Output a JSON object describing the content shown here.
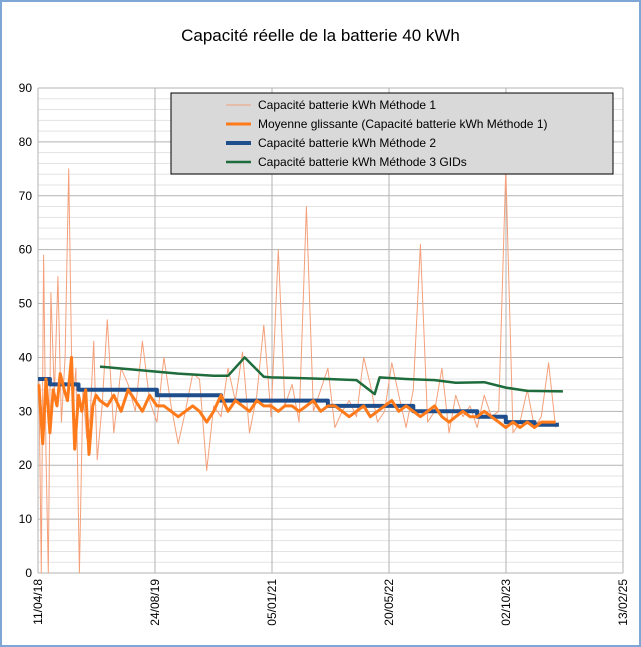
{
  "chart_data": {
    "type": "line",
    "title": "Capacité réelle de la batterie 40 kWh",
    "xlabel": "",
    "ylabel": "",
    "ylim": [
      0,
      90
    ],
    "y_ticks": [
      0,
      10,
      20,
      30,
      40,
      50,
      60,
      70,
      80,
      90
    ],
    "xlim": [
      "2018-04-11",
      "2025-02-13"
    ],
    "x_tick_labels": [
      "11/04/18",
      "24/08/19",
      "05/01/21",
      "20/05/22",
      "02/10/23",
      "13/02/25"
    ],
    "grid": true,
    "legend_position": "top-right",
    "series": [
      {
        "name": "Capacité batterie kWh Méthode 1",
        "color": "#f4a07a",
        "x": [
          "2018-04-15",
          "2018-04-25",
          "2018-05-05",
          "2018-05-15",
          "2018-05-25",
          "2018-06-05",
          "2018-06-20",
          "2018-07-05",
          "2018-07-20",
          "2018-08-05",
          "2018-08-20",
          "2018-09-05",
          "2018-09-20",
          "2018-10-05",
          "2018-10-20",
          "2018-11-05",
          "2018-11-20",
          "2018-12-05",
          "2018-12-20",
          "2019-01-10",
          "2019-02-01",
          "2019-03-01",
          "2019-04-01",
          "2019-05-01",
          "2019-06-01",
          "2019-07-01",
          "2019-08-01",
          "2019-09-01",
          "2019-10-01",
          "2019-11-01",
          "2019-12-01",
          "2020-01-01",
          "2020-02-01",
          "2020-03-01",
          "2020-04-01",
          "2020-05-01",
          "2020-06-01",
          "2020-07-01",
          "2020-08-01",
          "2020-09-01",
          "2020-10-01",
          "2020-11-01",
          "2020-12-01",
          "2021-01-01",
          "2021-02-01",
          "2021-03-01",
          "2021-04-01",
          "2021-05-01",
          "2021-06-01",
          "2021-07-01",
          "2021-08-01",
          "2021-09-01",
          "2021-10-01",
          "2021-11-01",
          "2021-12-01",
          "2022-01-01",
          "2022-02-01",
          "2022-03-01",
          "2022-04-01",
          "2022-05-01",
          "2022-06-01",
          "2022-07-01",
          "2022-08-01",
          "2022-09-01",
          "2022-10-01",
          "2022-11-01",
          "2022-12-01",
          "2023-01-01",
          "2023-02-01",
          "2023-03-01",
          "2023-04-01",
          "2023-05-01",
          "2023-06-01",
          "2023-07-01",
          "2023-08-01",
          "2023-09-01",
          "2023-10-01",
          "2023-11-01",
          "2023-12-01",
          "2024-01-01",
          "2024-02-01",
          "2024-03-01",
          "2024-04-01",
          "2024-05-01"
        ],
        "values": [
          36,
          0,
          59,
          22,
          0,
          52,
          33,
          55,
          28,
          40,
          75,
          30,
          38,
          0,
          34,
          25,
          29,
          43,
          21,
          31,
          47,
          26,
          38,
          35,
          30,
          43,
          32,
          28,
          40,
          31,
          24,
          30,
          37,
          36,
          19,
          31,
          29,
          38,
          32,
          41,
          26,
          33,
          46,
          29,
          60,
          31,
          35,
          28,
          68,
          30,
          34,
          38,
          27,
          30,
          32,
          29,
          40,
          35,
          28,
          30,
          39,
          33,
          27,
          34,
          61,
          28,
          30,
          38,
          26,
          33,
          29,
          31,
          27,
          33,
          29,
          30,
          75,
          26,
          28,
          34,
          27,
          29,
          39,
          27
        ]
      },
      {
        "name": "Moyenne glissante (Capacité batterie kWh Méthode 1)",
        "color": "#ff7a1a",
        "x": [
          "2018-04-15",
          "2018-05-01",
          "2018-05-15",
          "2018-06-01",
          "2018-06-15",
          "2018-07-01",
          "2018-07-15",
          "2018-08-01",
          "2018-08-15",
          "2018-09-01",
          "2018-09-15",
          "2018-10-01",
          "2018-10-15",
          "2018-11-01",
          "2018-11-15",
          "2018-12-01",
          "2018-12-15",
          "2019-01-01",
          "2019-02-01",
          "2019-03-01",
          "2019-04-01",
          "2019-05-01",
          "2019-06-01",
          "2019-07-01",
          "2019-08-01",
          "2019-09-01",
          "2019-10-01",
          "2019-11-01",
          "2019-12-01",
          "2020-01-01",
          "2020-02-01",
          "2020-03-01",
          "2020-04-01",
          "2020-05-01",
          "2020-06-01",
          "2020-07-01",
          "2020-08-01",
          "2020-09-01",
          "2020-10-01",
          "2020-11-01",
          "2020-12-01",
          "2021-01-01",
          "2021-02-01",
          "2021-03-01",
          "2021-04-01",
          "2021-05-01",
          "2021-06-01",
          "2021-07-01",
          "2021-08-01",
          "2021-09-01",
          "2021-10-01",
          "2021-11-01",
          "2021-12-01",
          "2022-01-01",
          "2022-02-01",
          "2022-03-01",
          "2022-04-01",
          "2022-05-01",
          "2022-06-01",
          "2022-07-01",
          "2022-08-01",
          "2022-09-01",
          "2022-10-01",
          "2022-11-01",
          "2022-12-01",
          "2023-01-01",
          "2023-02-01",
          "2023-03-01",
          "2023-04-01",
          "2023-05-01",
          "2023-06-01",
          "2023-07-01",
          "2023-08-01",
          "2023-09-01",
          "2023-10-01",
          "2023-11-01",
          "2023-12-01",
          "2024-01-01",
          "2024-02-01",
          "2024-03-01",
          "2024-04-01",
          "2024-05-01"
        ],
        "values": [
          35,
          24,
          36,
          26,
          34,
          31,
          37,
          34,
          32,
          40,
          23,
          33,
          30,
          34,
          22,
          31,
          33,
          32,
          31,
          33,
          30,
          34,
          32,
          30,
          33,
          31,
          31,
          30,
          29,
          30,
          31,
          30,
          28,
          30,
          33,
          30,
          32,
          31,
          30,
          32,
          31,
          31,
          30,
          31,
          31,
          30,
          31,
          32,
          30,
          31,
          31,
          30,
          29,
          30,
          31,
          29,
          30,
          31,
          32,
          30,
          31,
          30,
          29,
          30,
          31,
          29,
          28,
          29,
          30,
          29,
          29,
          30,
          29,
          28,
          27,
          28,
          27,
          28,
          27,
          28,
          28,
          28
        ]
      },
      {
        "name": "Capacité batterie kWh Méthode 2",
        "color": "#1f4e8c",
        "x": [
          "2018-04-11",
          "2018-06-01",
          "2018-06-01",
          "2018-10-01",
          "2018-10-01",
          "2019-09-01",
          "2019-09-01",
          "2020-06-01",
          "2020-06-01",
          "2021-09-01",
          "2021-09-01",
          "2022-09-01",
          "2022-09-01",
          "2023-06-01",
          "2023-06-01",
          "2023-10-01",
          "2023-10-01",
          "2024-02-01",
          "2024-02-01",
          "2024-05-15"
        ],
        "values": [
          36,
          36,
          35,
          35,
          34,
          34,
          33,
          33,
          32,
          32,
          31,
          31,
          30,
          30,
          29,
          29,
          28,
          28,
          27.5,
          27.5
        ]
      },
      {
        "name": "Capacité batterie kWh Méthode 3 GIDs",
        "color": "#1e6b3c",
        "x": [
          "2019-01-01",
          "2019-06-01",
          "2019-12-01",
          "2020-05-01",
          "2020-07-01",
          "2020-09-10",
          "2020-12-01",
          "2021-01-01",
          "2021-04-01",
          "2021-09-01",
          "2022-01-01",
          "2022-03-20",
          "2022-04-10",
          "2022-08-01",
          "2022-12-01",
          "2023-03-01",
          "2023-07-01",
          "2023-10-01",
          "2024-01-01",
          "2024-06-01"
        ],
        "values": [
          38.3,
          37.7,
          37,
          36.6,
          36.6,
          40,
          36.4,
          36.3,
          36.2,
          36,
          35.8,
          33.2,
          36.3,
          36,
          35.8,
          35.3,
          35.4,
          34.4,
          33.8,
          33.7
        ]
      }
    ]
  }
}
